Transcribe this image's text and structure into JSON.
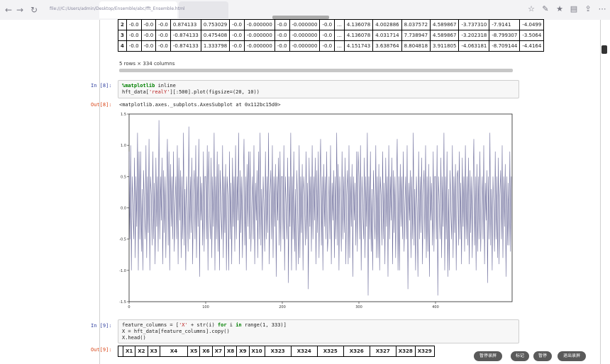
{
  "browser": {
    "url": "file:///C:/Users/admin/Desktop/Ensemble/abc/fft_Ensemble.html",
    "back_icon": "arrow-left",
    "forward_icon": "arrow-right",
    "reload_icon": "reload"
  },
  "top_table": {
    "rows": [
      {
        "idx": "2",
        "cells": [
          "-0.0",
          "-0.0",
          "-0.0",
          "0.874133",
          "0.753029",
          "-0.0",
          "-0.000000",
          "-0.0",
          "-0.000000",
          "-0.0",
          "...",
          "4.136078",
          "4.002886",
          "8.037572",
          "4.589867",
          "-3.737310",
          "-7.9141",
          "-4.0499"
        ]
      },
      {
        "idx": "3",
        "cells": [
          "-0.0",
          "-0.0",
          "-0.0",
          "-0.874133",
          "0.475408",
          "-0.0",
          "-0.000000",
          "-0.0",
          "-0.000000",
          "-0.0",
          "...",
          "4.136078",
          "4.031714",
          "7.738947",
          "4.589867",
          "-3.202318",
          "-8.799307",
          "-3.5064"
        ]
      },
      {
        "idx": "4",
        "cells": [
          "-0.0",
          "-0.0",
          "-0.0",
          "-0.874133",
          "1.333798",
          "-0.0",
          "-0.000000",
          "-0.0",
          "-0.000000",
          "-0.0",
          "...",
          "4.151743",
          "3.638764",
          "8.804818",
          "3.911805",
          "-4.063181",
          "-8.709144",
          "-4.4164"
        ]
      }
    ],
    "shape_text": "5 rows × 334 columns"
  },
  "cell8": {
    "in_prompt": "In [8]:",
    "magic": "%matplotlib",
    "magic_arg": " inline",
    "line2_a": "hft_data[",
    "line2_str": "'realY'",
    "line2_b": "][:500].plot(figsize=(20, 10))",
    "out_prompt": "Out[8]:",
    "out_text": "<matplotlib.axes._subplots.AxesSubplot at 0x112bc15d0>"
  },
  "chart_data": {
    "type": "line",
    "series": [
      {
        "values": [
          0.5,
          -0.5,
          1.0,
          -1.0,
          0.5,
          0.0,
          -0.5,
          0.8,
          -0.8,
          0.5,
          -0.3,
          1.2,
          -1.0,
          0.5,
          -0.5,
          0.9,
          -0.7,
          0.3,
          -1.0,
          0.6,
          0.0,
          -0.5,
          1.0,
          -0.8,
          0.5,
          -0.4,
          0.7,
          -1.0,
          0.5,
          0.2,
          -0.6,
          0.9,
          -0.5,
          0.4,
          -0.9,
          0.8,
          -0.3,
          0.5,
          -0.7,
          1.0,
          -0.5,
          0.5,
          -0.2,
          0.8,
          -0.9,
          0.6,
          -0.4,
          0.5,
          -0.8,
          0.3,
          1.1,
          -0.6,
          0.5,
          -1.0,
          0.7,
          -0.3,
          0.5,
          -0.5,
          0.9,
          -0.7,
          0.0,
          0.5,
          -0.5,
          1.0,
          -0.9,
          0.4,
          -0.2,
          0.6,
          -0.8,
          0.5,
          -0.5,
          1.2,
          -0.6,
          0.3,
          -1.0,
          0.5,
          0.0,
          -0.7,
          0.9,
          -0.5,
          0.5,
          -0.4,
          0.8,
          -0.9,
          0.2,
          0.6,
          -0.5,
          1.0,
          -0.8,
          0.5,
          -0.3,
          0.7,
          -1.1,
          0.5,
          -0.2,
          0.4,
          -0.6,
          0.9,
          -0.7,
          0.5
        ]
      }
    ],
    "xlim": [
      0,
      500
    ],
    "ylim": [
      -1.5,
      1.5
    ],
    "xticks": [
      "0",
      "100",
      "200",
      "300",
      "400"
    ],
    "yticks": [
      "1.5",
      "1.0",
      "0.5",
      "0.0",
      "-0.5",
      "-1.0",
      "-1.5"
    ]
  },
  "cell9": {
    "in_prompt": "In [9]:",
    "l1a": "feature_columns = [",
    "l1s": "'X'",
    "l1b": " + str(i) ",
    "l1k1": "for",
    "l1c": " i ",
    "l1k2": "in",
    "l1d": " range(1, 333)]",
    "l2": "X = hft_data[feature_columns].copy()",
    "l3": "X.head()",
    "out_prompt": "Out[9]:"
  },
  "bottom_table": {
    "headers": [
      "",
      "X1",
      "X2",
      "X3",
      "X4",
      "X5",
      "X6",
      "X7",
      "X8",
      "X9",
      "X10",
      "X323",
      "X324",
      "X325",
      "X326",
      "X327",
      "X328",
      "X329"
    ]
  },
  "overlay_buttons": [
    "暂停录屏",
    "标记",
    "暂停",
    "退出录屏"
  ]
}
